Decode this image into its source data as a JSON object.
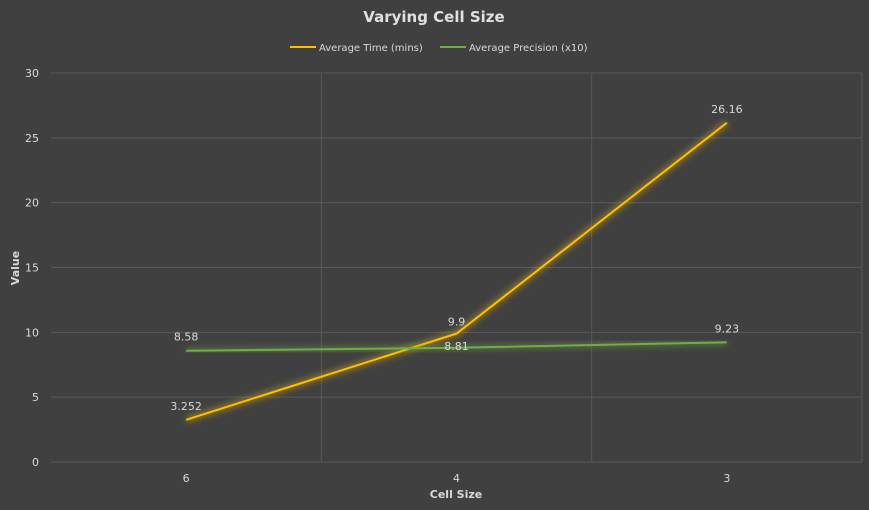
{
  "chart_data": {
    "type": "line",
    "title": "Varying Cell Size",
    "xlabel": "Cell Size",
    "ylabel": "Value",
    "categories": [
      "6",
      "4",
      "3"
    ],
    "ylim": [
      0,
      30
    ],
    "yticks": [
      "0",
      "5",
      "10",
      "15",
      "20",
      "25",
      "30"
    ],
    "grid": true,
    "legend_position": "top",
    "series": [
      {
        "name": "Average Time (mins)",
        "color": "#ffc000",
        "values": [
          3.252,
          9.9,
          26.16
        ],
        "labels": [
          "3.252",
          "9.9",
          "26.16"
        ]
      },
      {
        "name": "Average Precision (x10)",
        "color": "#70ad47",
        "values": [
          8.58,
          8.81,
          9.23
        ],
        "labels": [
          "8.58",
          "8.81",
          "9.23"
        ]
      }
    ]
  }
}
